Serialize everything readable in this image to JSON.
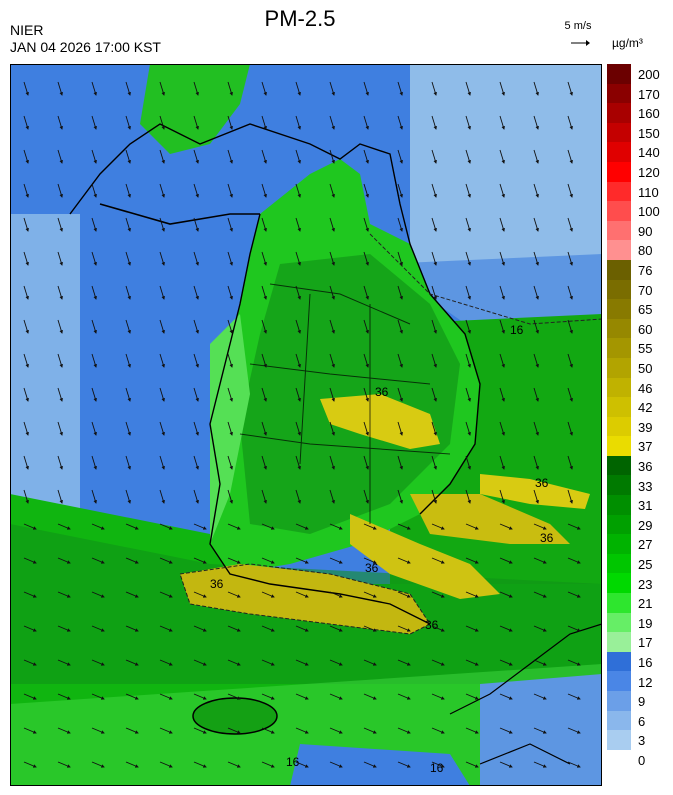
{
  "header": {
    "source": "NIER",
    "timestamp": "JAN 04 2026 17:00 KST",
    "title": "PM-2.5",
    "wind_reference": "5 m/s",
    "unit": "µg/m³"
  },
  "legend": {
    "labels": [
      "200",
      "170",
      "160",
      "150",
      "140",
      "120",
      "110",
      "100",
      "90",
      "80",
      "76",
      "70",
      "65",
      "60",
      "55",
      "50",
      "46",
      "42",
      "39",
      "37",
      "36",
      "33",
      "31",
      "29",
      "27",
      "25",
      "23",
      "21",
      "19",
      "17",
      "16",
      "12",
      "9",
      "6",
      "3",
      "0"
    ],
    "colors": [
      "#6b0000",
      "#8a0000",
      "#a80000",
      "#c40000",
      "#e00000",
      "#ff0000",
      "#ff2a2a",
      "#ff4d4d",
      "#ff7070",
      "#ff9090",
      "#6b6000",
      "#7a6d00",
      "#887a00",
      "#968800",
      "#a49600",
      "#b2a400",
      "#c0b200",
      "#cec000",
      "#dccc00",
      "#eadc00",
      "#006400",
      "#007a00",
      "#008f00",
      "#00a000",
      "#00b300",
      "#00c600",
      "#00d900",
      "#2ee62e",
      "#66ee66",
      "#99f099",
      "#2f6fd8",
      "#4a86e6",
      "#6b9fe8",
      "#8ab7ec",
      "#a9cdf0"
    ]
  },
  "map_labels": [
    {
      "text": "16"
    },
    {
      "text": "36"
    },
    {
      "text": "36"
    },
    {
      "text": "36"
    },
    {
      "text": "36"
    },
    {
      "text": "36"
    },
    {
      "text": "36"
    },
    {
      "text": "16"
    },
    {
      "text": "16"
    }
  ],
  "icons": [
    "wind-arrow-icon"
  ]
}
